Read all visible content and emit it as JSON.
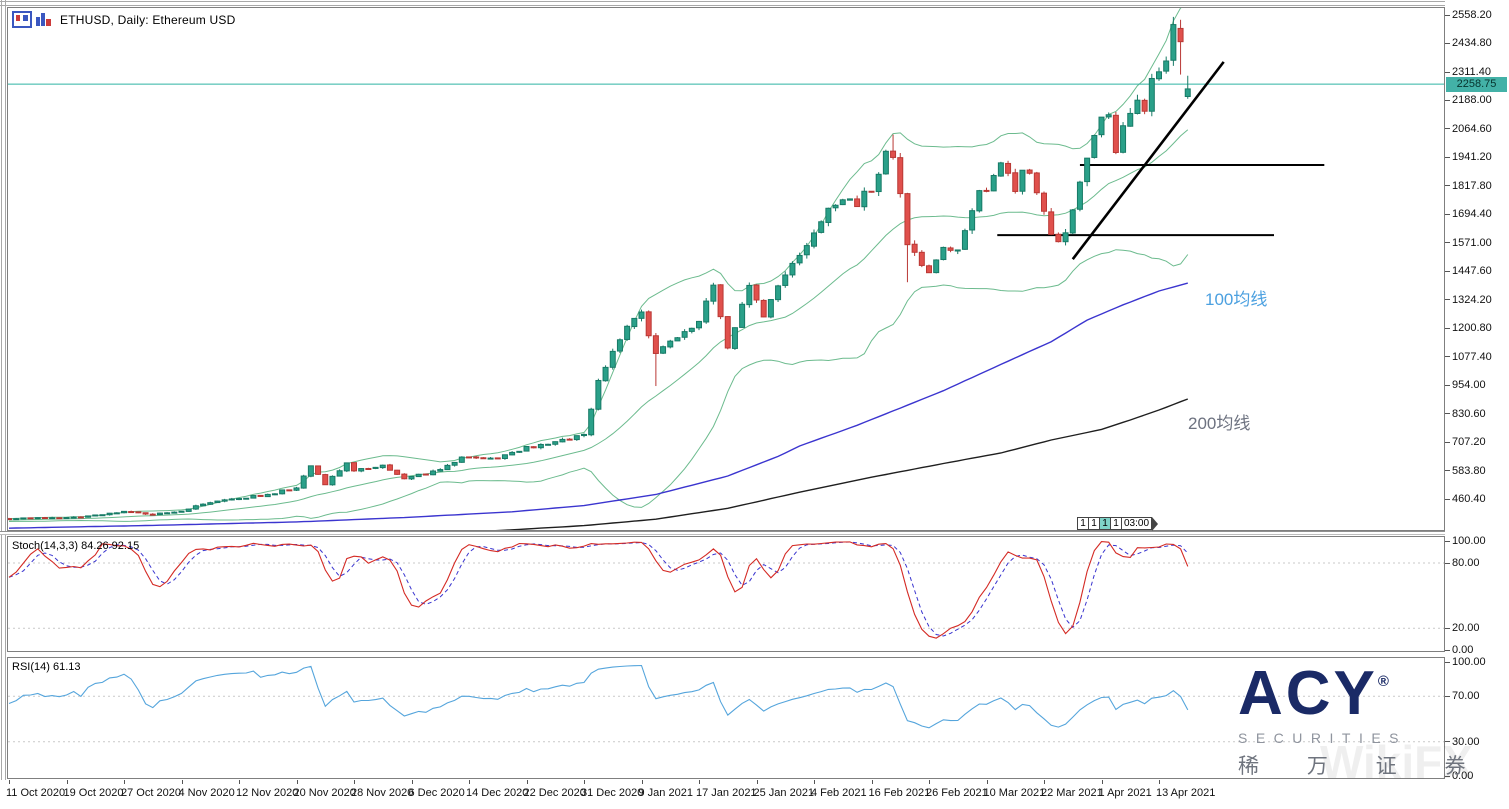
{
  "header": {
    "title": "ETHUSD, Daily: Ethereum USD"
  },
  "price_tag": {
    "label": "2258.75"
  },
  "marker": {
    "cells": [
      "1",
      "1",
      "1",
      "1"
    ],
    "highlight_index": 2,
    "time": "03:00"
  },
  "logo": {
    "name": "ACY",
    "registered": "®",
    "line2": "SECURITIES",
    "line3": "稀 万 证 券"
  },
  "watermark": {
    "text": "WikiFX"
  },
  "colors": {
    "bull": "#2aa089",
    "bull_border": "#177a66",
    "bear": "#e0504c",
    "bear_border": "#b93835",
    "bollinger": "#6cbb8e",
    "ma100": "#3b35cf",
    "ma200": "#1f1f1f",
    "price_line": "#2fb3a3",
    "price_tag_bg": "#43b1a7",
    "stoch_main": "#d42a24",
    "stoch_signal": "#3a35cf",
    "rsi": "#55a5dc",
    "level_dash": "#c9c9c9",
    "trend": "#000000",
    "ma100_label": "#4ba0e0",
    "ma200_label": "#6d7280"
  },
  "chart_data": {
    "type": "candlestick",
    "symbol": "ETHUSD",
    "timeframe": "Daily",
    "title": "ETHUSD, Daily: Ethereum USD",
    "bars": 165,
    "y_ticks": [
      2558.2,
      2434.8,
      2311.4,
      2188.0,
      2064.6,
      1941.2,
      1817.8,
      1694.4,
      1571.0,
      1447.6,
      1324.2,
      1200.8,
      1077.4,
      954.0,
      830.6,
      707.2,
      583.8,
      460.4
    ],
    "x_labels": [
      "11 Oct 2020",
      "19 Oct 2020",
      "27 Oct 2020",
      "4 Nov 2020",
      "12 Nov 2020",
      "20 Nov 2020",
      "28 Nov 2020",
      "6 Dec 2020",
      "14 Dec 2020",
      "22 Dec 2020",
      "31 Dec 2020",
      "9 Jan 2021",
      "17 Jan 2021",
      "25 Jan 2021",
      "4 Feb 2021",
      "16 Feb 2021",
      "26 Feb 2021",
      "10 Mar 2021",
      "22 Mar 2021",
      "1 Apr 2021",
      "13 Apr 2021"
    ],
    "x_label_step": 8,
    "current_price": 2258.75,
    "close_anchors": [
      [
        0,
        374
      ],
      [
        4,
        376
      ],
      [
        8,
        379
      ],
      [
        12,
        388
      ],
      [
        16,
        403
      ],
      [
        20,
        396
      ],
      [
        24,
        410
      ],
      [
        28,
        445
      ],
      [
        32,
        462
      ],
      [
        36,
        480
      ],
      [
        40,
        511
      ],
      [
        42,
        600
      ],
      [
        44,
        525
      ],
      [
        47,
        612
      ],
      [
        48,
        587
      ],
      [
        52,
        602
      ],
      [
        55,
        552
      ],
      [
        58,
        570
      ],
      [
        60,
        586
      ],
      [
        63,
        640
      ],
      [
        66,
        637
      ],
      [
        68,
        635
      ],
      [
        72,
        682
      ],
      [
        76,
        708
      ],
      [
        80,
        737
      ],
      [
        82,
        975
      ],
      [
        84,
        1100
      ],
      [
        86,
        1210
      ],
      [
        88,
        1281
      ],
      [
        89,
        1160
      ],
      [
        90,
        1087
      ],
      [
        93,
        1170
      ],
      [
        96,
        1232
      ],
      [
        98,
        1380
      ],
      [
        100,
        1110
      ],
      [
        103,
        1390
      ],
      [
        105,
        1245
      ],
      [
        107,
        1380
      ],
      [
        110,
        1515
      ],
      [
        112,
        1600
      ],
      [
        114,
        1720
      ],
      [
        116,
        1770
      ],
      [
        118,
        1745
      ],
      [
        119,
        1805
      ],
      [
        120,
        1780
      ],
      [
        122,
        1955
      ],
      [
        123,
        1940
      ],
      [
        124,
        1780
      ],
      [
        125,
        1570
      ],
      [
        127,
        1475
      ],
      [
        128,
        1450
      ],
      [
        130,
        1560
      ],
      [
        132,
        1530
      ],
      [
        134,
        1700
      ],
      [
        135,
        1800
      ],
      [
        136,
        1800
      ],
      [
        137,
        1850
      ],
      [
        138,
        1925
      ],
      [
        139,
        1860
      ],
      [
        140,
        1790
      ],
      [
        141,
        1870
      ],
      [
        142,
        1880
      ],
      [
        143,
        1780
      ],
      [
        144,
        1700
      ],
      [
        145,
        1620
      ],
      [
        146,
        1590
      ],
      [
        147,
        1600
      ],
      [
        148,
        1720
      ],
      [
        149,
        1840
      ],
      [
        150,
        1950
      ],
      [
        151,
        2040
      ],
      [
        152,
        2130
      ],
      [
        153,
        2110
      ],
      [
        154,
        1975
      ],
      [
        155,
        2070
      ],
      [
        156,
        2135
      ],
      [
        157,
        2200
      ],
      [
        158,
        2130
      ],
      [
        159,
        2300
      ],
      [
        160,
        2310
      ],
      [
        161,
        2380
      ],
      [
        162,
        2498
      ],
      [
        163,
        2420
      ],
      [
        164,
        2258.75
      ]
    ],
    "overrides": {
      "90": {
        "low": 950
      },
      "123": {
        "high": 2040
      },
      "125": {
        "low": 1400
      },
      "162": {
        "high": 2550
      },
      "163": {
        "open": 2500,
        "low": 2300
      },
      "164": {
        "open": 2205,
        "high": 2295,
        "low": 2195
      }
    },
    "bollinger": {
      "period": 20,
      "deviation": 2
    },
    "ma100": {
      "label": "100均线",
      "points": [
        [
          0,
          334
        ],
        [
          20,
          346
        ],
        [
          40,
          361
        ],
        [
          55,
          380
        ],
        [
          70,
          405
        ],
        [
          80,
          432
        ],
        [
          90,
          480
        ],
        [
          100,
          560
        ],
        [
          107,
          645
        ],
        [
          110,
          690
        ],
        [
          118,
          780
        ],
        [
          125,
          867
        ],
        [
          130,
          930
        ],
        [
          135,
          1001
        ],
        [
          140,
          1072
        ],
        [
          145,
          1142
        ],
        [
          150,
          1236
        ],
        [
          155,
          1302
        ],
        [
          160,
          1362
        ],
        [
          164,
          1396
        ]
      ]
    },
    "ma200": {
      "label": "200均线",
      "points": [
        [
          50,
          305
        ],
        [
          60,
          312
        ],
        [
          69,
          325
        ],
        [
          80,
          345
        ],
        [
          90,
          373
        ],
        [
          100,
          420
        ],
        [
          110,
          490
        ],
        [
          120,
          555
        ],
        [
          131,
          620
        ],
        [
          138,
          660
        ],
        [
          145,
          716
        ],
        [
          152,
          762
        ],
        [
          156,
          803
        ],
        [
          160,
          846
        ],
        [
          164,
          894
        ]
      ]
    },
    "trend_lines": [
      {
        "type": "segment",
        "x1": 148,
        "p1": 1500,
        "x2": 169,
        "p2": 2355
      },
      {
        "type": "hline",
        "p": 1908,
        "x1": 149,
        "x2": 183
      },
      {
        "type": "hline",
        "p": 1604,
        "x1": 137.5,
        "x2": 176
      }
    ],
    "stoch": {
      "label": "Stoch(14,3,3) 84.26 92.15",
      "params": [
        14,
        3,
        3
      ],
      "current": [
        84.26,
        92.15
      ],
      "ticks": [
        100,
        80,
        20,
        0
      ],
      "levels": [
        80,
        20
      ]
    },
    "rsi": {
      "label": "RSI(14) 61.13",
      "period": 14,
      "current": 61.13,
      "ticks": [
        100,
        70,
        30,
        0
      ],
      "levels": [
        70,
        30
      ]
    }
  }
}
